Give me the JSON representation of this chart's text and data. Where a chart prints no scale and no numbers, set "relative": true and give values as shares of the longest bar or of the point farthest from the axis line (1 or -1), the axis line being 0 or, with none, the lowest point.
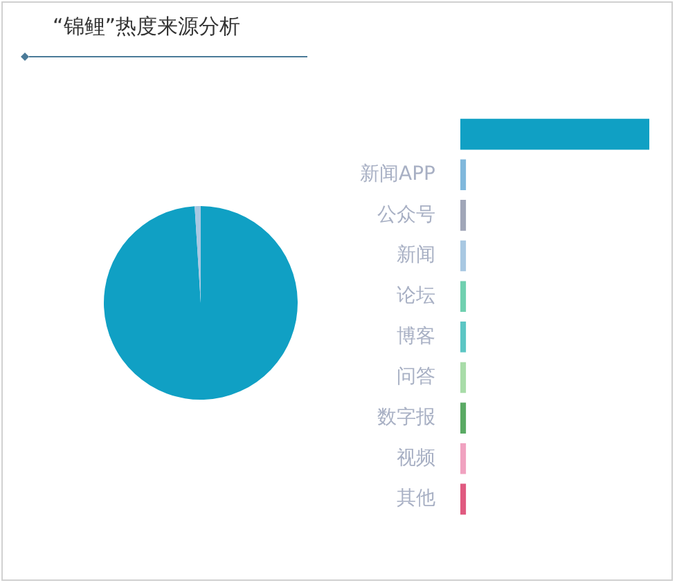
{
  "chart_data": [
    {
      "type": "pie",
      "title": "“锦鲤”热度来源分析",
      "values": [
        99,
        1
      ],
      "colors": [
        "#10a0c4",
        "#a8c8e2"
      ]
    },
    {
      "type": "bar",
      "orientation": "horizontal",
      "relative": true,
      "categories": [
        null,
        "新闻APP",
        "公众号",
        "新闻",
        "论坛",
        "博客",
        "问答",
        "数字报",
        "视频",
        "其他"
      ],
      "values": [
        1,
        0.03,
        0.03,
        0.03,
        0.03,
        0.03,
        0.03,
        0.03,
        0.03,
        0.03
      ],
      "colors": [
        "#10a0c4",
        "#80b8dc",
        "#a0a6b8",
        "#a8c8e2",
        "#70d0b0",
        "#5cc6c4",
        "#a8dca8",
        "#5aaa64",
        "#f0a2c0",
        "#e05a80"
      ]
    }
  ]
}
